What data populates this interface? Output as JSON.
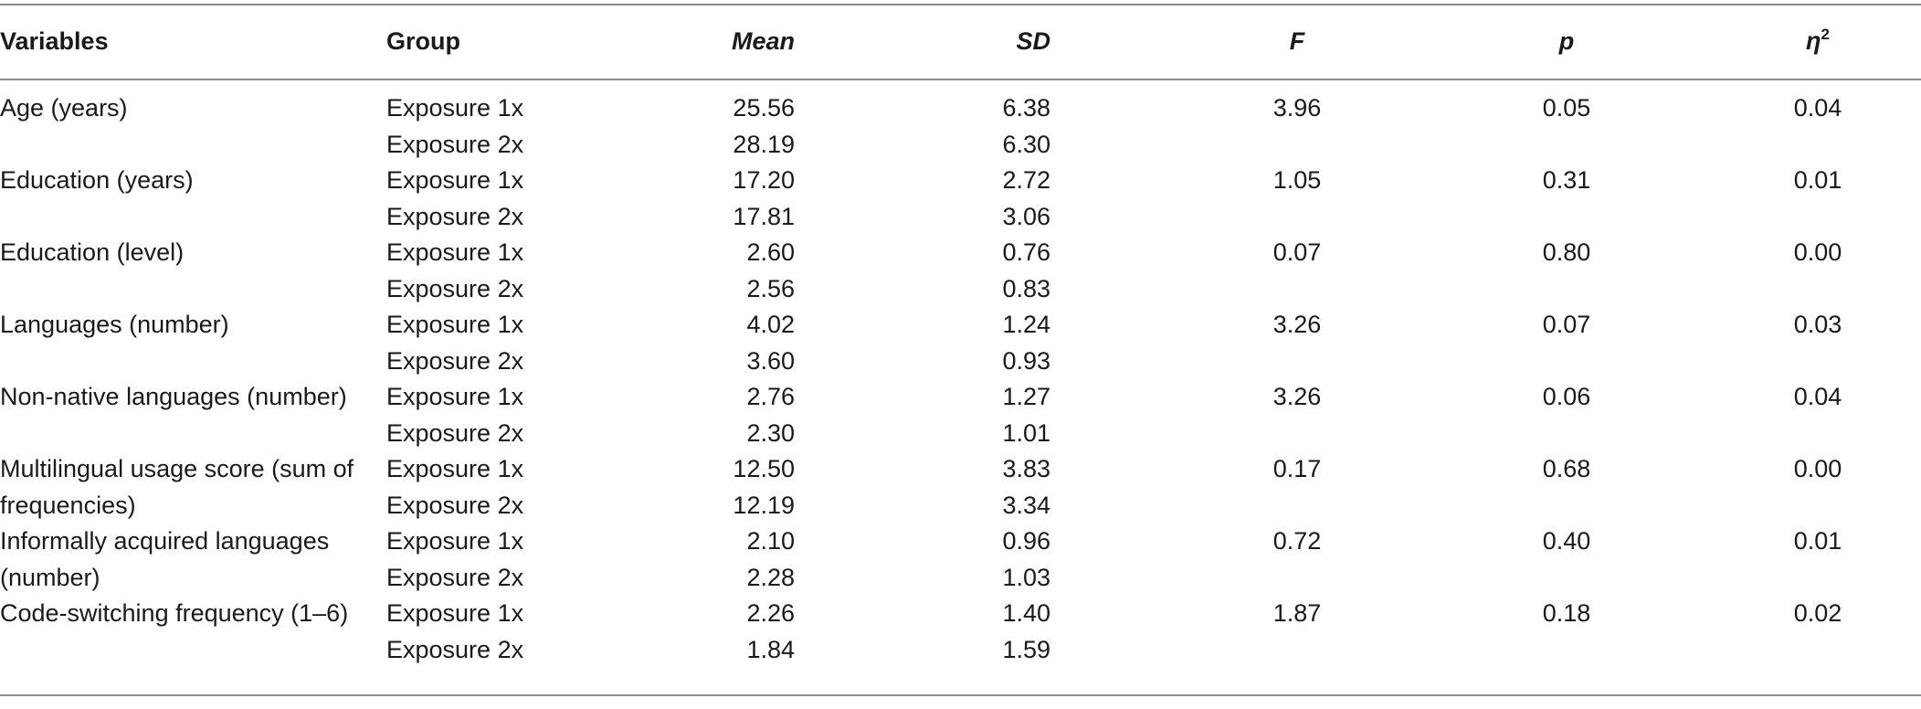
{
  "table": {
    "headers": {
      "variables": "Variables",
      "group": "Group",
      "mean": "Mean",
      "sd": "SD",
      "f": "F",
      "p": "p",
      "eta": "η",
      "eta_sup": "2"
    },
    "rows": [
      {
        "variable": "Age (years)",
        "g1": "Exposure 1x",
        "m1": "25.56",
        "sd1": "6.38",
        "g2": "Exposure 2x",
        "m2": "28.19",
        "sd2": "6.30",
        "f": "3.96",
        "p": "0.05",
        "eta": "0.04"
      },
      {
        "variable": "Education (years)",
        "g1": "Exposure 1x",
        "m1": "17.20",
        "sd1": "2.72",
        "g2": "Exposure 2x",
        "m2": "17.81",
        "sd2": "3.06",
        "f": "1.05",
        "p": "0.31",
        "eta": "0.01"
      },
      {
        "variable": "Education (level)",
        "g1": "Exposure 1x",
        "m1": "2.60",
        "sd1": "0.76",
        "g2": "Exposure 2x",
        "m2": "2.56",
        "sd2": "0.83",
        "f": "0.07",
        "p": "0.80",
        "eta": "0.00"
      },
      {
        "variable": "Languages (number)",
        "g1": "Exposure 1x",
        "m1": "4.02",
        "sd1": "1.24",
        "g2": "Exposure 2x",
        "m2": "3.60",
        "sd2": "0.93",
        "f": "3.26",
        "p": "0.07",
        "eta": "0.03"
      },
      {
        "variable": "Non-native languages (number)",
        "g1": "Exposure 1x",
        "m1": "2.76",
        "sd1": "1.27",
        "g2": "Exposure 2x",
        "m2": "2.30",
        "sd2": "1.01",
        "f": "3.26",
        "p": "0.06",
        "eta": "0.04"
      },
      {
        "variable": "Multilingual usage score (sum of frequencies)",
        "g1": "Exposure 1x",
        "m1": "12.50",
        "sd1": "3.83",
        "g2": "Exposure 2x",
        "m2": "12.19",
        "sd2": "3.34",
        "f": "0.17",
        "p": "0.68",
        "eta": "0.00"
      },
      {
        "variable": "Informally acquired languages (number)",
        "g1": "Exposure 1x",
        "m1": "2.10",
        "sd1": "0.96",
        "g2": "Exposure 2x",
        "m2": "2.28",
        "sd2": "1.03",
        "f": "0.72",
        "p": "0.40",
        "eta": "0.01"
      },
      {
        "variable": "Code-switching frequency (1–6)",
        "g1": "Exposure 1x",
        "m1": "2.26",
        "sd1": "1.40",
        "g2": "Exposure 2x",
        "m2": "1.84",
        "sd2": "1.59",
        "f": "1.87",
        "p": "0.18",
        "eta": "0.02"
      }
    ]
  }
}
